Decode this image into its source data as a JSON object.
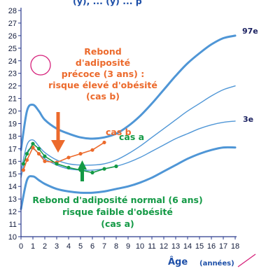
{
  "chart_data": {
    "type": "line",
    "header_fragment": "(y), ... (y) ... p",
    "xlabel": "Âge",
    "xunit": "(années)",
    "x_ticks": [
      0,
      1,
      2,
      3,
      4,
      5,
      6,
      7,
      8,
      9,
      10,
      11,
      12,
      13,
      14,
      15,
      16,
      17,
      18
    ],
    "y_ticks": [
      10,
      11,
      12,
      13,
      14,
      15,
      16,
      17,
      18,
      19,
      20,
      21,
      22,
      23,
      24,
      25,
      26,
      27,
      28
    ],
    "xlim": [
      0,
      18
    ],
    "ylim": [
      10,
      28
    ],
    "grid": false,
    "curves": [
      {
        "label": "97e",
        "x": [
          0,
          0.5,
          1,
          1.5,
          2,
          3,
          4,
          5,
          6,
          7,
          8,
          9,
          10,
          11,
          12,
          13,
          14,
          15,
          16,
          17,
          18
        ],
        "y": [
          16.9,
          20.0,
          20.5,
          20.0,
          19.3,
          18.6,
          18.2,
          17.9,
          17.8,
          17.9,
          18.2,
          18.8,
          19.6,
          20.6,
          21.7,
          22.8,
          23.8,
          24.6,
          25.3,
          25.8,
          26.0
        ]
      },
      {
        "label": "",
        "x": [
          0,
          0.5,
          1,
          1.5,
          2,
          3,
          4,
          5,
          6,
          7,
          8,
          9,
          10,
          11,
          12,
          13,
          14,
          15,
          16,
          17,
          18
        ],
        "y": [
          15.2,
          17.3,
          17.7,
          17.2,
          16.7,
          16.1,
          15.8,
          15.7,
          15.7,
          15.8,
          16.1,
          16.6,
          17.2,
          17.9,
          18.6,
          19.3,
          20.0,
          20.6,
          21.2,
          21.7,
          22.0
        ]
      },
      {
        "label": "",
        "x": [
          0,
          0.5,
          1,
          1.5,
          2,
          3,
          4,
          5,
          6,
          7,
          8,
          9,
          10,
          11,
          12,
          13,
          14,
          15,
          16,
          17,
          18
        ],
        "y": [
          14.7,
          16.7,
          17.0,
          16.6,
          16.2,
          15.7,
          15.4,
          15.3,
          15.3,
          15.4,
          15.6,
          15.9,
          16.3,
          16.8,
          17.3,
          17.8,
          18.2,
          18.6,
          18.9,
          19.1,
          19.2
        ]
      },
      {
        "label": "3e",
        "x": [
          0,
          0.5,
          1,
          1.5,
          2,
          3,
          4,
          5,
          6,
          7,
          8,
          9,
          10,
          11,
          12,
          13,
          14,
          15,
          16,
          17,
          18
        ],
        "y": [
          12.2,
          14.5,
          14.8,
          14.5,
          14.2,
          13.8,
          13.6,
          13.5,
          13.5,
          13.6,
          13.8,
          14.0,
          14.3,
          14.7,
          15.2,
          15.7,
          16.2,
          16.6,
          16.9,
          17.1,
          17.1
        ]
      }
    ],
    "series": [
      {
        "name": "cas b",
        "color": "#ec6a2c",
        "x": [
          0.2,
          0.5,
          1,
          1.5,
          2,
          3,
          4,
          5,
          6,
          7
        ],
        "y": [
          15.3,
          16.1,
          17.1,
          16.6,
          16.0,
          15.9,
          16.3,
          16.6,
          16.9,
          17.5
        ]
      },
      {
        "name": "cas a",
        "color": "#139945",
        "x": [
          0.2,
          0.5,
          1,
          1.5,
          2,
          3,
          4,
          5,
          6,
          7,
          8
        ],
        "y": [
          15.8,
          16.6,
          17.4,
          17.0,
          16.4,
          15.8,
          15.5,
          15.3,
          15.1,
          15.4,
          15.6
        ]
      }
    ],
    "annotations": {
      "orange_lines": [
        "Rebond",
        "d'adiposité",
        "précoce (3 ans) :",
        "risque élevé d'obésité",
        "(cas b)"
      ],
      "green_lines": [
        "Rebond d'adiposité normal (6 ans)",
        "risque faible d'obésité",
        "(cas a)"
      ],
      "label_97": "97e",
      "label_3": "3e",
      "label_cas_b": "cas b",
      "label_cas_a": "cas a"
    },
    "colors": {
      "curve": "#4f96d6",
      "axis": "#2a3a8c",
      "orange": "#ec6a2c",
      "green": "#139945",
      "circle": "#d6207a"
    }
  }
}
